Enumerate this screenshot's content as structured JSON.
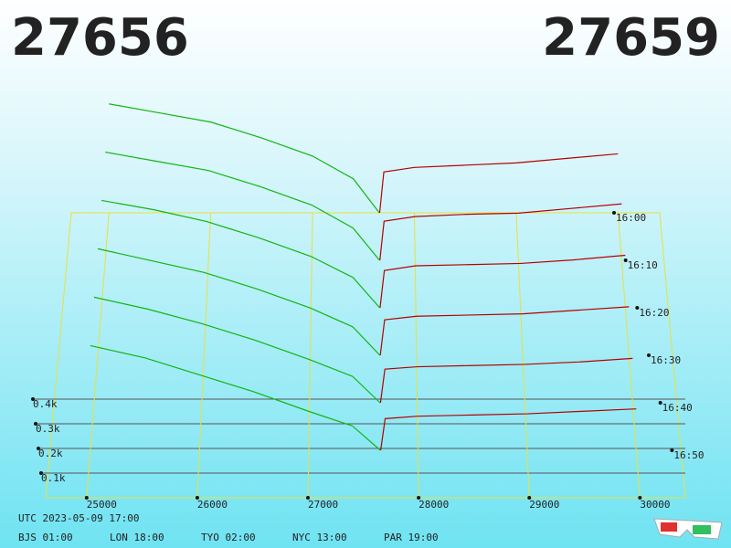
{
  "chart_data": {
    "type": "depth3d",
    "bid": 27656,
    "ask": 27659,
    "bid_color": "#11b511",
    "ask_color": "#b50000",
    "xlim": [
      24630,
      30410
    ],
    "xticks": [
      25000,
      26000,
      27000,
      28000,
      29000,
      30000
    ],
    "ylim": [
      0,
      500
    ],
    "yticks": [
      {
        "value": 100,
        "label": "0.1k"
      },
      {
        "value": 200,
        "label": "0.2k"
      },
      {
        "value": 300,
        "label": "0.3k"
      },
      {
        "value": 400,
        "label": "0.4k"
      }
    ],
    "slices": [
      {
        "time": "16:00",
        "bid_prices": [
          25000,
          25500,
          26000,
          26500,
          27000,
          27400,
          27656
        ],
        "bids": [
          480,
          440,
          400,
          330,
          250,
          150,
          0
        ],
        "ask_prices": [
          27659,
          27700,
          28000,
          28500,
          29000,
          29500,
          30000
        ],
        "asks": [
          0,
          180,
          200,
          210,
          220,
          240,
          260
        ]
      },
      {
        "time": "16:10",
        "bid_prices": [
          25000,
          25500,
          26000,
          26500,
          27000,
          27400,
          27656
        ],
        "bids": [
          470,
          430,
          390,
          320,
          240,
          140,
          0
        ],
        "ask_prices": [
          27659,
          27700,
          28000,
          28500,
          29000,
          29500,
          30000
        ],
        "asks": [
          0,
          170,
          190,
          200,
          205,
          225,
          245
        ]
      },
      {
        "time": "16:20",
        "bid_prices": [
          25000,
          25500,
          26000,
          26500,
          27000,
          27400,
          27656
        ],
        "bids": [
          460,
          420,
          370,
          300,
          220,
          130,
          0
        ],
        "ask_prices": [
          27659,
          27700,
          28000,
          28500,
          29000,
          29500,
          30000
        ],
        "asks": [
          0,
          160,
          180,
          185,
          190,
          205,
          225
        ]
      },
      {
        "time": "16:30",
        "bid_prices": [
          25000,
          25500,
          26000,
          26500,
          27000,
          27400,
          27656
        ],
        "bids": [
          450,
          400,
          350,
          280,
          200,
          120,
          0
        ],
        "ask_prices": [
          27659,
          27700,
          28000,
          28500,
          29000,
          29500,
          30000
        ],
        "asks": [
          0,
          150,
          165,
          170,
          175,
          190,
          205
        ]
      },
      {
        "time": "16:40",
        "bid_prices": [
          25000,
          25500,
          26000,
          26500,
          27000,
          27400,
          27656
        ],
        "bids": [
          440,
          390,
          330,
          260,
          180,
          110,
          0
        ],
        "ask_prices": [
          27659,
          27700,
          28000,
          28500,
          29000,
          29500,
          30000
        ],
        "asks": [
          0,
          140,
          150,
          155,
          160,
          170,
          185
        ]
      },
      {
        "time": "16:50",
        "bid_prices": [
          25000,
          25500,
          26000,
          26500,
          27000,
          27400,
          27656
        ],
        "bids": [
          430,
          380,
          310,
          240,
          160,
          100,
          0
        ],
        "ask_prices": [
          27659,
          27700,
          28000,
          28500,
          29000,
          29500,
          30000
        ],
        "asks": [
          0,
          130,
          140,
          145,
          150,
          160,
          170
        ]
      }
    ]
  },
  "footer": {
    "utc": "UTC 2023-05-09 17:00",
    "zones": [
      "BJS 01:00",
      "LON 18:00",
      "TYO 02:00",
      "NYC 13:00",
      "PAR 19:00"
    ]
  }
}
